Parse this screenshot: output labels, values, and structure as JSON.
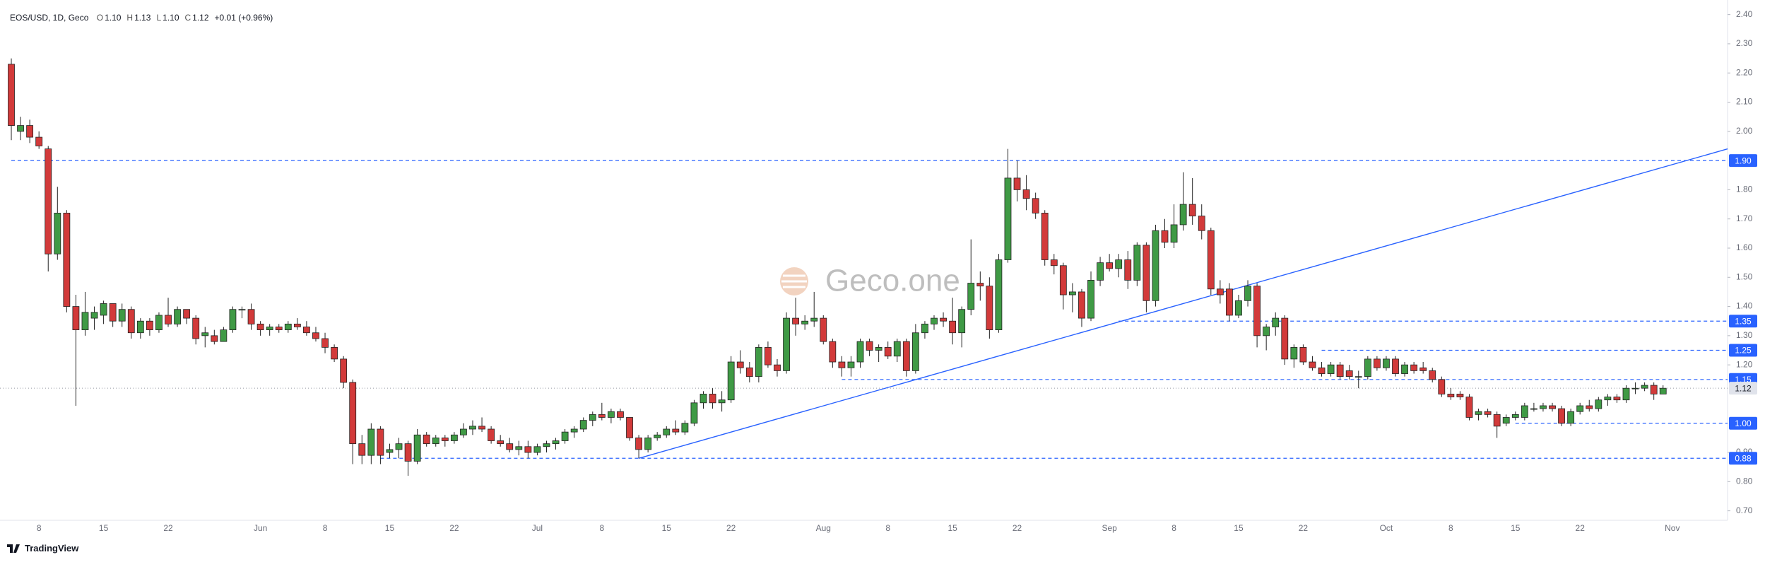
{
  "chart_data": {
    "type": "candlestick",
    "title": "EOS/USD, 1D, Geco",
    "legend": [
      {
        "label": "O",
        "value": "1.10"
      },
      {
        "label": "H",
        "value": "1.13"
      },
      {
        "label": "L",
        "value": "1.10"
      },
      {
        "label": "C",
        "value": "1.12"
      }
    ],
    "change": "+0.01 (+0.96%)",
    "watermark": "Geco.one",
    "footer": "TradingView",
    "up_color": "#3f9a45",
    "down_color": "#d23a3a",
    "categories": [
      null,
      null,
      null,
      "8",
      null,
      null,
      null,
      null,
      null,
      null,
      "15",
      null,
      null,
      null,
      null,
      null,
      null,
      "22",
      null,
      null,
      null,
      null,
      null,
      null,
      null,
      null,
      null,
      "Jun",
      null,
      null,
      null,
      null,
      null,
      null,
      "8",
      null,
      null,
      null,
      null,
      null,
      null,
      "15",
      null,
      null,
      null,
      null,
      null,
      null,
      "22",
      null,
      null,
      null,
      null,
      null,
      null,
      null,
      null,
      "Jul",
      null,
      null,
      null,
      null,
      null,
      null,
      "8",
      null,
      null,
      null,
      null,
      null,
      null,
      "15",
      null,
      null,
      null,
      null,
      null,
      null,
      "22",
      null,
      null,
      null,
      null,
      null,
      null,
      null,
      null,
      null,
      "Aug",
      null,
      null,
      null,
      null,
      null,
      null,
      "8",
      null,
      null,
      null,
      null,
      null,
      null,
      "15",
      null,
      null,
      null,
      null,
      null,
      null,
      "22",
      null,
      null,
      null,
      null,
      null,
      null,
      null,
      null,
      null,
      "Sep",
      null,
      null,
      null,
      null,
      null,
      null,
      "8",
      null,
      null,
      null,
      null,
      null,
      null,
      "15",
      null,
      null,
      null,
      null,
      null,
      null,
      "22",
      null,
      null,
      null,
      null,
      null,
      null,
      null,
      null,
      "Oct",
      null,
      null,
      null,
      null,
      null,
      null,
      "8",
      null,
      null,
      null,
      null,
      null,
      null,
      "15",
      null,
      null,
      null,
      null,
      null,
      null,
      "22",
      null,
      null,
      null,
      null,
      null,
      null,
      null,
      null,
      null,
      "Nov"
    ],
    "open": [
      2.23,
      2.0,
      2.02,
      1.98,
      1.94,
      1.58,
      1.72,
      1.4,
      1.32,
      1.36,
      1.37,
      1.41,
      1.35,
      1.39,
      1.31,
      1.35,
      1.32,
      1.37,
      1.34,
      1.39,
      1.36,
      1.3,
      1.3,
      1.28,
      1.32,
      1.39,
      1.39,
      1.34,
      1.32,
      1.33,
      1.32,
      1.34,
      1.33,
      1.31,
      1.29,
      1.26,
      1.22,
      1.14,
      0.93,
      0.89,
      0.98,
      0.9,
      0.91,
      0.93,
      0.87,
      0.96,
      0.93,
      0.95,
      0.94,
      0.96,
      0.98,
      0.99,
      0.98,
      0.94,
      0.93,
      0.91,
      0.92,
      0.9,
      0.92,
      0.93,
      0.94,
      0.97,
      0.98,
      1.01,
      1.03,
      1.02,
      1.04,
      1.02,
      0.95,
      0.91,
      0.95,
      0.96,
      0.98,
      0.97,
      1.0,
      1.07,
      1.1,
      1.07,
      1.08,
      1.21,
      1.19,
      1.16,
      1.26,
      1.2,
      1.18,
      1.36,
      1.34,
      1.35,
      1.36,
      1.28,
      1.21,
      1.19,
      1.21,
      1.28,
      1.25,
      1.26,
      1.23,
      1.28,
      1.18,
      1.31,
      1.34,
      1.36,
      1.35,
      1.31,
      1.39,
      1.48,
      1.47,
      1.32,
      1.56,
      1.84,
      1.8,
      1.77,
      1.72,
      1.56,
      1.54,
      1.44,
      1.45,
      1.36,
      1.49,
      1.55,
      1.53,
      1.56,
      1.49,
      1.61,
      1.42,
      1.66,
      1.62,
      1.68,
      1.75,
      1.71,
      1.66,
      1.46,
      1.46,
      1.37,
      1.42,
      1.47,
      1.3,
      1.33,
      1.36,
      1.22,
      1.26,
      1.21,
      1.19,
      1.17,
      1.2,
      1.18,
      1.16,
      1.16,
      1.22,
      1.19,
      1.22,
      1.17,
      1.2,
      1.19,
      1.18,
      1.15,
      1.1,
      1.1,
      1.09,
      1.03,
      1.04,
      1.03,
      1.0,
      1.02,
      1.02,
      1.05,
      1.05,
      1.06,
      1.05,
      1.0,
      1.04,
      1.06,
      1.05,
      1.08,
      1.09,
      1.08,
      1.12,
      1.12,
      1.13,
      1.1,
      null
    ],
    "high": [
      2.25,
      2.05,
      2.04,
      2.0,
      1.95,
      1.81,
      1.73,
      1.44,
      1.45,
      1.4,
      1.42,
      1.41,
      1.41,
      1.4,
      1.36,
      1.36,
      1.38,
      1.43,
      1.4,
      1.39,
      1.37,
      1.33,
      1.32,
      1.33,
      1.4,
      1.4,
      1.41,
      1.35,
      1.34,
      1.34,
      1.35,
      1.36,
      1.35,
      1.33,
      1.31,
      1.27,
      1.23,
      1.15,
      0.96,
      1.0,
      0.99,
      0.93,
      0.95,
      0.94,
      0.98,
      0.97,
      0.96,
      0.96,
      0.97,
      1.0,
      1.01,
      1.02,
      0.99,
      0.96,
      0.95,
      0.94,
      0.94,
      0.93,
      0.94,
      0.95,
      0.98,
      0.99,
      1.02,
      1.04,
      1.07,
      1.05,
      1.05,
      1.02,
      0.96,
      0.96,
      0.97,
      0.99,
      1.01,
      1.01,
      1.08,
      1.11,
      1.12,
      1.11,
      1.23,
      1.25,
      1.21,
      1.27,
      1.28,
      1.22,
      1.38,
      1.43,
      1.37,
      1.45,
      1.37,
      1.29,
      1.23,
      1.23,
      1.29,
      1.29,
      1.27,
      1.28,
      1.29,
      1.29,
      1.34,
      1.35,
      1.37,
      1.38,
      1.43,
      1.4,
      1.63,
      1.52,
      1.5,
      1.58,
      1.94,
      1.9,
      1.85,
      1.79,
      1.73,
      1.58,
      1.55,
      1.48,
      1.46,
      1.52,
      1.57,
      1.58,
      1.58,
      1.59,
      1.62,
      1.62,
      1.68,
      1.7,
      1.75,
      1.86,
      1.84,
      1.75,
      1.67,
      1.49,
      1.48,
      1.44,
      1.49,
      1.48,
      1.34,
      1.38,
      1.37,
      1.27,
      1.27,
      1.23,
      1.21,
      1.21,
      1.21,
      1.2,
      1.18,
      1.23,
      1.23,
      1.23,
      1.23,
      1.21,
      1.21,
      1.21,
      1.19,
      1.16,
      1.12,
      1.11,
      1.1,
      1.05,
      1.05,
      1.04,
      1.03,
      1.04,
      1.07,
      1.07,
      1.07,
      1.07,
      1.06,
      1.05,
      1.07,
      1.08,
      1.09,
      1.1,
      1.1,
      1.13,
      1.14,
      1.14,
      1.14,
      1.13,
      null
    ],
    "low": [
      1.97,
      1.97,
      1.96,
      1.94,
      1.52,
      1.56,
      1.38,
      1.06,
      1.3,
      1.32,
      1.34,
      1.33,
      1.33,
      1.29,
      1.29,
      1.3,
      1.31,
      1.33,
      1.33,
      1.34,
      1.27,
      1.26,
      1.27,
      1.28,
      1.31,
      1.36,
      1.32,
      1.3,
      1.3,
      1.31,
      1.31,
      1.32,
      1.3,
      1.28,
      1.24,
      1.21,
      1.12,
      0.86,
      0.86,
      0.86,
      0.86,
      0.88,
      0.88,
      0.82,
      0.86,
      0.92,
      0.92,
      0.92,
      0.93,
      0.95,
      0.96,
      0.97,
      0.93,
      0.92,
      0.9,
      0.89,
      0.88,
      0.89,
      0.9,
      0.91,
      0.93,
      0.95,
      0.97,
      0.99,
      1.01,
      1.0,
      1.01,
      0.94,
      0.88,
      0.9,
      0.94,
      0.95,
      0.96,
      0.96,
      0.99,
      1.05,
      1.05,
      1.04,
      1.07,
      1.17,
      1.14,
      1.14,
      1.19,
      1.16,
      1.17,
      1.3,
      1.32,
      1.33,
      1.27,
      1.19,
      1.16,
      1.16,
      1.19,
      1.23,
      1.21,
      1.22,
      1.21,
      1.16,
      1.17,
      1.29,
      1.32,
      1.33,
      1.27,
      1.26,
      1.37,
      1.42,
      1.29,
      1.31,
      1.55,
      1.76,
      1.73,
      1.7,
      1.54,
      1.51,
      1.39,
      1.38,
      1.33,
      1.35,
      1.47,
      1.52,
      1.5,
      1.46,
      1.47,
      1.38,
      1.4,
      1.6,
      1.6,
      1.66,
      1.68,
      1.63,
      1.44,
      1.41,
      1.35,
      1.36,
      1.4,
      1.26,
      1.25,
      1.3,
      1.2,
      1.19,
      1.2,
      1.18,
      1.16,
      1.16,
      1.15,
      1.15,
      1.12,
      1.15,
      1.18,
      1.18,
      1.16,
      1.16,
      1.17,
      1.17,
      1.14,
      1.09,
      1.08,
      1.08,
      1.01,
      1.01,
      1.02,
      0.95,
      0.99,
      1.01,
      1.01,
      1.04,
      1.04,
      1.04,
      0.99,
      0.99,
      1.03,
      1.04,
      1.04,
      1.06,
      1.07,
      1.07,
      1.1,
      1.11,
      1.08,
      1.1,
      null
    ],
    "close": [
      2.02,
      2.02,
      1.98,
      1.95,
      1.58,
      1.72,
      1.4,
      1.32,
      1.38,
      1.38,
      1.41,
      1.35,
      1.39,
      1.31,
      1.35,
      1.32,
      1.37,
      1.34,
      1.39,
      1.36,
      1.29,
      1.31,
      1.28,
      1.32,
      1.39,
      1.39,
      1.34,
      1.32,
      1.33,
      1.32,
      1.34,
      1.33,
      1.31,
      1.29,
      1.26,
      1.22,
      1.14,
      0.93,
      0.89,
      0.98,
      0.89,
      0.91,
      0.93,
      0.87,
      0.96,
      0.93,
      0.95,
      0.94,
      0.96,
      0.98,
      0.99,
      0.98,
      0.94,
      0.93,
      0.91,
      0.92,
      0.9,
      0.92,
      0.93,
      0.94,
      0.97,
      0.98,
      1.01,
      1.03,
      1.02,
      1.04,
      1.02,
      0.95,
      0.91,
      0.95,
      0.96,
      0.98,
      0.97,
      1.0,
      1.07,
      1.1,
      1.07,
      1.08,
      1.21,
      1.19,
      1.16,
      1.26,
      1.2,
      1.18,
      1.36,
      1.34,
      1.35,
      1.36,
      1.28,
      1.21,
      1.19,
      1.21,
      1.28,
      1.25,
      1.26,
      1.23,
      1.28,
      1.18,
      1.31,
      1.34,
      1.36,
      1.35,
      1.31,
      1.39,
      1.48,
      1.47,
      1.32,
      1.56,
      1.84,
      1.8,
      1.77,
      1.72,
      1.56,
      1.54,
      1.44,
      1.45,
      1.36,
      1.49,
      1.55,
      1.53,
      1.56,
      1.49,
      1.61,
      1.42,
      1.66,
      1.62,
      1.68,
      1.75,
      1.71,
      1.66,
      1.46,
      1.44,
      1.37,
      1.42,
      1.47,
      1.3,
      1.33,
      1.36,
      1.22,
      1.26,
      1.21,
      1.19,
      1.17,
      1.2,
      1.16,
      1.16,
      1.16,
      1.22,
      1.19,
      1.22,
      1.17,
      1.2,
      1.18,
      1.18,
      1.15,
      1.1,
      1.09,
      1.09,
      1.02,
      1.04,
      1.03,
      0.99,
      1.02,
      1.03,
      1.06,
      1.05,
      1.06,
      1.05,
      1.0,
      1.04,
      1.06,
      1.05,
      1.08,
      1.09,
      1.08,
      1.12,
      1.12,
      1.13,
      1.1,
      1.12,
      null
    ],
    "ylim": [
      0.67,
      2.45
    ],
    "yticks": [
      {
        "value": 2.4,
        "label": "2.40"
      },
      {
        "value": 2.3,
        "label": "2.30"
      },
      {
        "value": 2.2,
        "label": "2.20"
      },
      {
        "value": 2.1,
        "label": "2.10"
      },
      {
        "value": 2.0,
        "label": "2.00"
      },
      {
        "value": 1.8,
        "label": "1.80"
      },
      {
        "value": 1.7,
        "label": "1.70"
      },
      {
        "value": 1.6,
        "label": "1.60"
      },
      {
        "value": 1.5,
        "label": "1.50"
      },
      {
        "value": 1.4,
        "label": "1.40"
      },
      {
        "value": 1.3,
        "label": "1.30"
      },
      {
        "value": 1.2,
        "label": "1.20"
      },
      {
        "value": 0.9,
        "label": "0.90"
      },
      {
        "value": 0.8,
        "label": "0.80"
      },
      {
        "value": 0.7,
        "label": "0.70"
      }
    ],
    "grid": false,
    "level_color": "#2962ff",
    "levels": [
      {
        "value": 1.9,
        "label": "1.90",
        "start": 0
      },
      {
        "value": 1.35,
        "label": "1.35",
        "start": 120
      },
      {
        "value": 1.25,
        "label": "1.25",
        "start": 142
      },
      {
        "value": 1.15,
        "label": "1.15",
        "start": 90
      },
      {
        "value": 1.0,
        "label": "1.00",
        "start": 163
      },
      {
        "value": 0.88,
        "label": "0.88",
        "start": 40
      }
    ],
    "trendline": {
      "from": [
        68,
        0.88
      ],
      "to": [
        186,
        1.94
      ]
    },
    "last_price": 1.12
  }
}
